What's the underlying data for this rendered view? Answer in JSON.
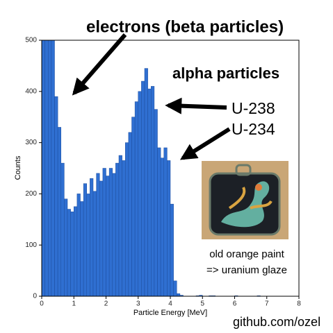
{
  "chart_data": {
    "type": "histogram",
    "xlabel": "Particle Energy [MeV]",
    "ylabel": "Counts",
    "bins": [
      0,
      0.1,
      0.2,
      0.3,
      0.4,
      0.5,
      0.6,
      0.7,
      0.8,
      0.9,
      1,
      1.1,
      1.2,
      1.3,
      1.4,
      1.5,
      1.6,
      1.7,
      1.8,
      1.9,
      2,
      2.1,
      2.2,
      2.3,
      2.4,
      2.5,
      2.6,
      2.7,
      2.8,
      2.9,
      3,
      3.1,
      3.2,
      3.3,
      3.4,
      3.5,
      3.6,
      3.7,
      3.8,
      3.9,
      4,
      4.1,
      4.2,
      4.3,
      4.4,
      4.5,
      4.6,
      4.7,
      4.8,
      4.9,
      5,
      5.1,
      5.2,
      5.3,
      5.4,
      5.5,
      5.6,
      5.7,
      5.8,
      5.9,
      6,
      6.1,
      6.2,
      6.3,
      6.4,
      6.5,
      6.6,
      6.7,
      6.8,
      6.9,
      7,
      7.1,
      7.2,
      7.3,
      7.4,
      7.5,
      7.6,
      7.7,
      7.8,
      7.9,
      8
    ],
    "counts": [
      500,
      500,
      500,
      500,
      390,
      330,
      260,
      190,
      170,
      165,
      175,
      200,
      185,
      220,
      200,
      230,
      205,
      240,
      225,
      250,
      235,
      250,
      240,
      260,
      275,
      265,
      300,
      320,
      350,
      380,
      400,
      420,
      445,
      405,
      410,
      365,
      290,
      270,
      290,
      265,
      180,
      30,
      5,
      2,
      0,
      0,
      0,
      0,
      1,
      2,
      0,
      0,
      1,
      1,
      0,
      0,
      0,
      0,
      0,
      0,
      1,
      0,
      0,
      0,
      0,
      0,
      0,
      1,
      0,
      0,
      0,
      0,
      0,
      0,
      0,
      0,
      0,
      0,
      0,
      0
    ],
    "color": "#2f6fd1",
    "xlim": [
      0,
      8
    ],
    "xticks": [
      0,
      1,
      2,
      3,
      4,
      5,
      6,
      7,
      8
    ],
    "ylim": [
      0,
      500
    ],
    "yticks": [
      0,
      100,
      200,
      300,
      400,
      500
    ],
    "annotations": [
      "electrons (beta particles)",
      "alpha particles",
      "U-238",
      "U-234",
      "old orange paint",
      "=> uranium glaze",
      "github.com/ozel"
    ]
  }
}
